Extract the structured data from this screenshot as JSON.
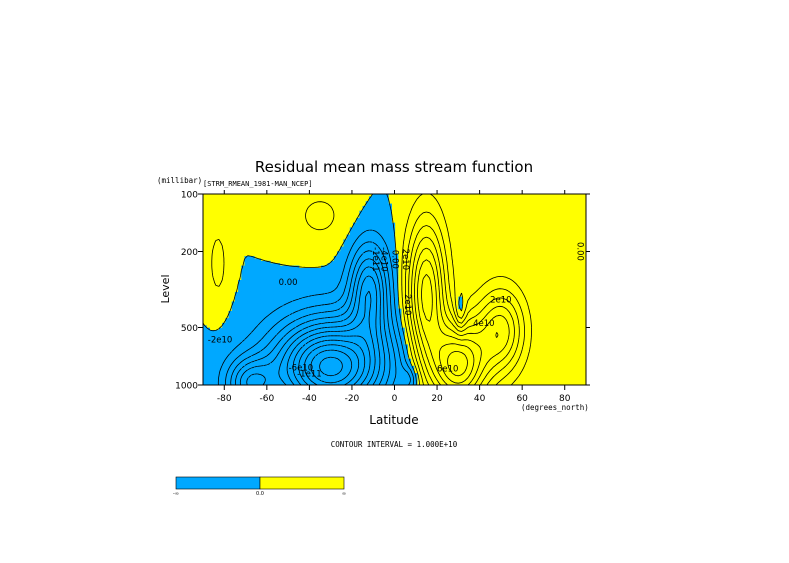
{
  "chart_data": {
    "type": "contour",
    "title": "Residual mean mass stream function",
    "subtitle": "[STRM_RMEAN_1981-MAN_NCEP]",
    "xlabel": "Latitude",
    "xunit": "(degrees_north)",
    "ylabel": "Level",
    "yunit": "(millibar)",
    "xlim": [
      -90,
      90
    ],
    "ylim": [
      1000,
      100
    ],
    "y_scale": "log",
    "x_ticks": [
      "-80",
      "-60",
      "-40",
      "-20",
      "0",
      "20",
      "40",
      "60",
      "80"
    ],
    "x_tick_values": [
      -80,
      -60,
      -40,
      -20,
      0,
      20,
      40,
      60,
      80
    ],
    "y_ticks": [
      "100",
      "200",
      "500",
      "1000"
    ],
    "y_tick_values": [
      100,
      200,
      500,
      1000
    ],
    "contour_interval_text": "CONTOUR INTERVAL = 1.000E+10",
    "contour_interval": 10000000000,
    "colors": {
      "negative": "#00a8ff",
      "positive": "#ffff00",
      "line": "#000000"
    },
    "contour_labels": [
      {
        "text": "0.00",
        "lat": -50,
        "p": 300
      },
      {
        "text": "-2e10",
        "lat": -82,
        "p": 600
      },
      {
        "text": "-6e10",
        "lat": -44,
        "p": 840
      },
      {
        "text": "-1e11",
        "lat": -40,
        "p": 900
      },
      {
        "text": "-1e11",
        "lat": -10,
        "p": 220
      },
      {
        "text": "-4e10",
        "lat": -6,
        "p": 220
      },
      {
        "text": "0.00",
        "lat": -1,
        "p": 220
      },
      {
        "text": "2e10",
        "lat": 4,
        "p": 220
      },
      {
        "text": "2e10",
        "lat": 5,
        "p": 380
      },
      {
        "text": "2e10",
        "lat": 50,
        "p": 370
      },
      {
        "text": "4e10",
        "lat": 42,
        "p": 490
      },
      {
        "text": "6e10",
        "lat": 25,
        "p": 850
      },
      {
        "text": "0.00",
        "lat": 86,
        "p": 200
      }
    ],
    "colorbar": {
      "labels": [
        "-∞",
        "0.0",
        "∞"
      ]
    }
  }
}
